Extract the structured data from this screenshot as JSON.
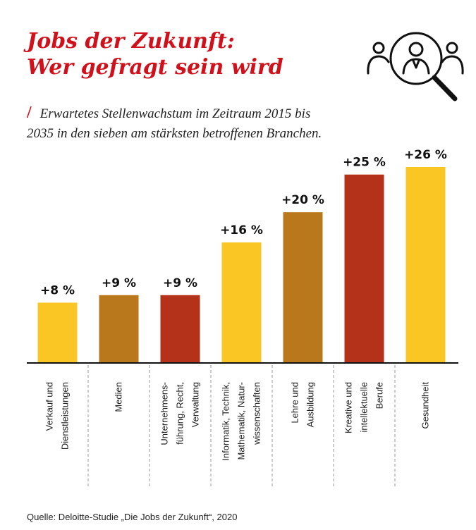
{
  "title": {
    "line1": "Jobs der Zukunft:",
    "line2": "Wer gefragt sein wird"
  },
  "subtitle_mark": "/",
  "subtitle": "Erwartetes Stellenwachstum im Zeitraum 2015 bis 2035 in den sieben am stärksten betroffenen Branchen.",
  "source": "Quelle: Deloitte-Studie „Die Jobs der Zukunft“, 2020",
  "icon": "people-search-magnifier-icon",
  "colors": {
    "title": "#d0111b",
    "yellow": "#f9c623",
    "ochre": "#b8781b",
    "red": "#b5321a"
  },
  "chart_data": {
    "type": "bar",
    "categories": [
      [
        "Verkauf und",
        "Dienstleistungen"
      ],
      [
        "Medien"
      ],
      [
        "Unternehmens-",
        "führung, Recht,",
        "Verwaltung"
      ],
      [
        "Informatik, Technik,",
        "Mathematik, Natur-",
        "wissenschaften"
      ],
      [
        "Lehre und",
        "Ausbildung"
      ],
      [
        "Kreative und",
        "intellektuelle",
        "Berufe"
      ],
      [
        "Gesundheit"
      ]
    ],
    "values": [
      8,
      9,
      9,
      16,
      20,
      25,
      26
    ],
    "labels": [
      "+8 %",
      "+9 %",
      "+9 %",
      "+16 %",
      "+20 %",
      "+25 %",
      "+26 %"
    ],
    "bar_colors": [
      "#f9c623",
      "#b8781b",
      "#b5321a",
      "#f9c623",
      "#b8781b",
      "#b5321a",
      "#f9c623"
    ],
    "unit": "%",
    "ylim": [
      0,
      26
    ]
  }
}
